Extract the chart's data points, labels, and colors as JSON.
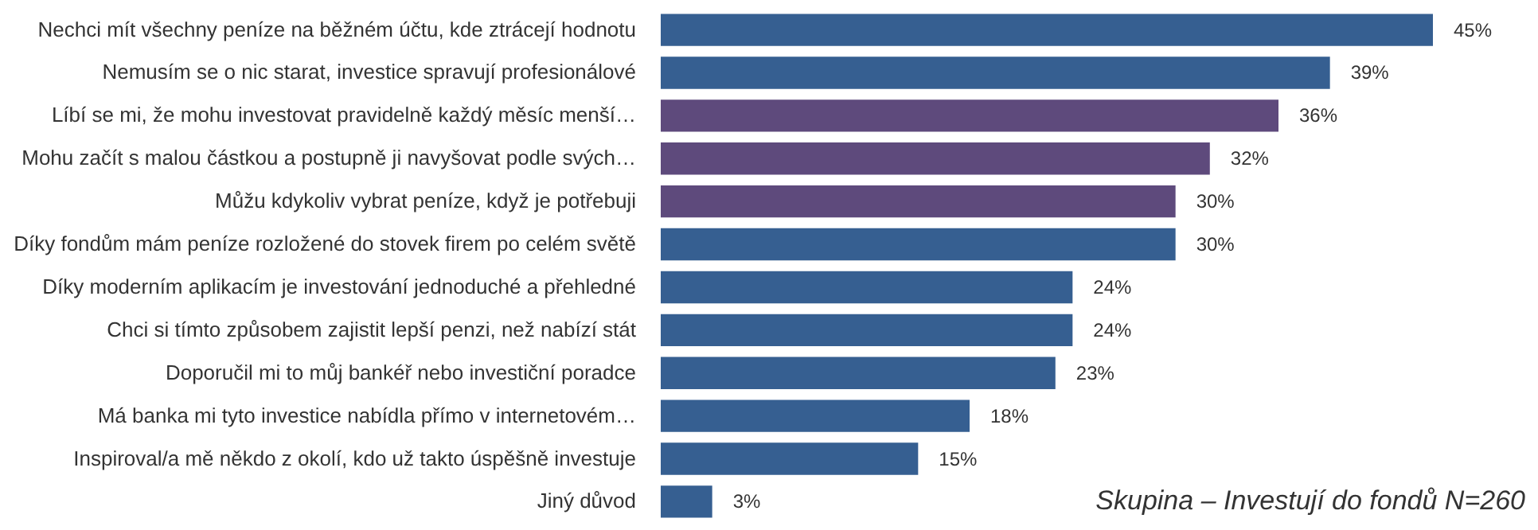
{
  "chart_data": {
    "type": "bar",
    "orientation": "horizontal",
    "categories": [
      "Nechci mít všechny peníze na běžném účtu, kde ztrácejí hodnotu",
      "Nemusím se o nic starat, investice spravují profesionálové",
      "Líbí se mi, že mohu investovat pravidelně každý měsíc menší…",
      "Mohu začít s malou částkou a postupně ji navyšovat podle svých…",
      "Můžu kdykoliv vybrat peníze, když je potřebuji",
      "Díky fondům mám peníze rozložené do stovek firem po celém světě",
      "Díky moderním aplikacím je investování jednoduché a přehledné",
      "Chci si tímto způsobem zajistit lepší penzi, než nabízí stát",
      "Doporučil mi to můj bankéř nebo investiční poradce",
      "Má banka mi tyto investice nabídla přímo v internetovém…",
      "Inspiroval/a mě někdo z okolí, kdo už takto úspěšně investuje",
      "Jiný důvod"
    ],
    "values": [
      45,
      39,
      36,
      32,
      30,
      30,
      24,
      24,
      23,
      18,
      15,
      3
    ],
    "value_labels": [
      "45%",
      "39%",
      "36%",
      "32%",
      "30%",
      "30%",
      "24%",
      "24%",
      "23%",
      "18%",
      "15%",
      "3%"
    ],
    "colors": [
      "#365f91",
      "#365f91",
      "#5e4a7c",
      "#5e4a7c",
      "#5e4a7c",
      "#365f91",
      "#365f91",
      "#365f91",
      "#365f91",
      "#365f91",
      "#365f91",
      "#365f91"
    ],
    "annotations": [
      "Skupina – Investují do fondů N=260"
    ]
  }
}
